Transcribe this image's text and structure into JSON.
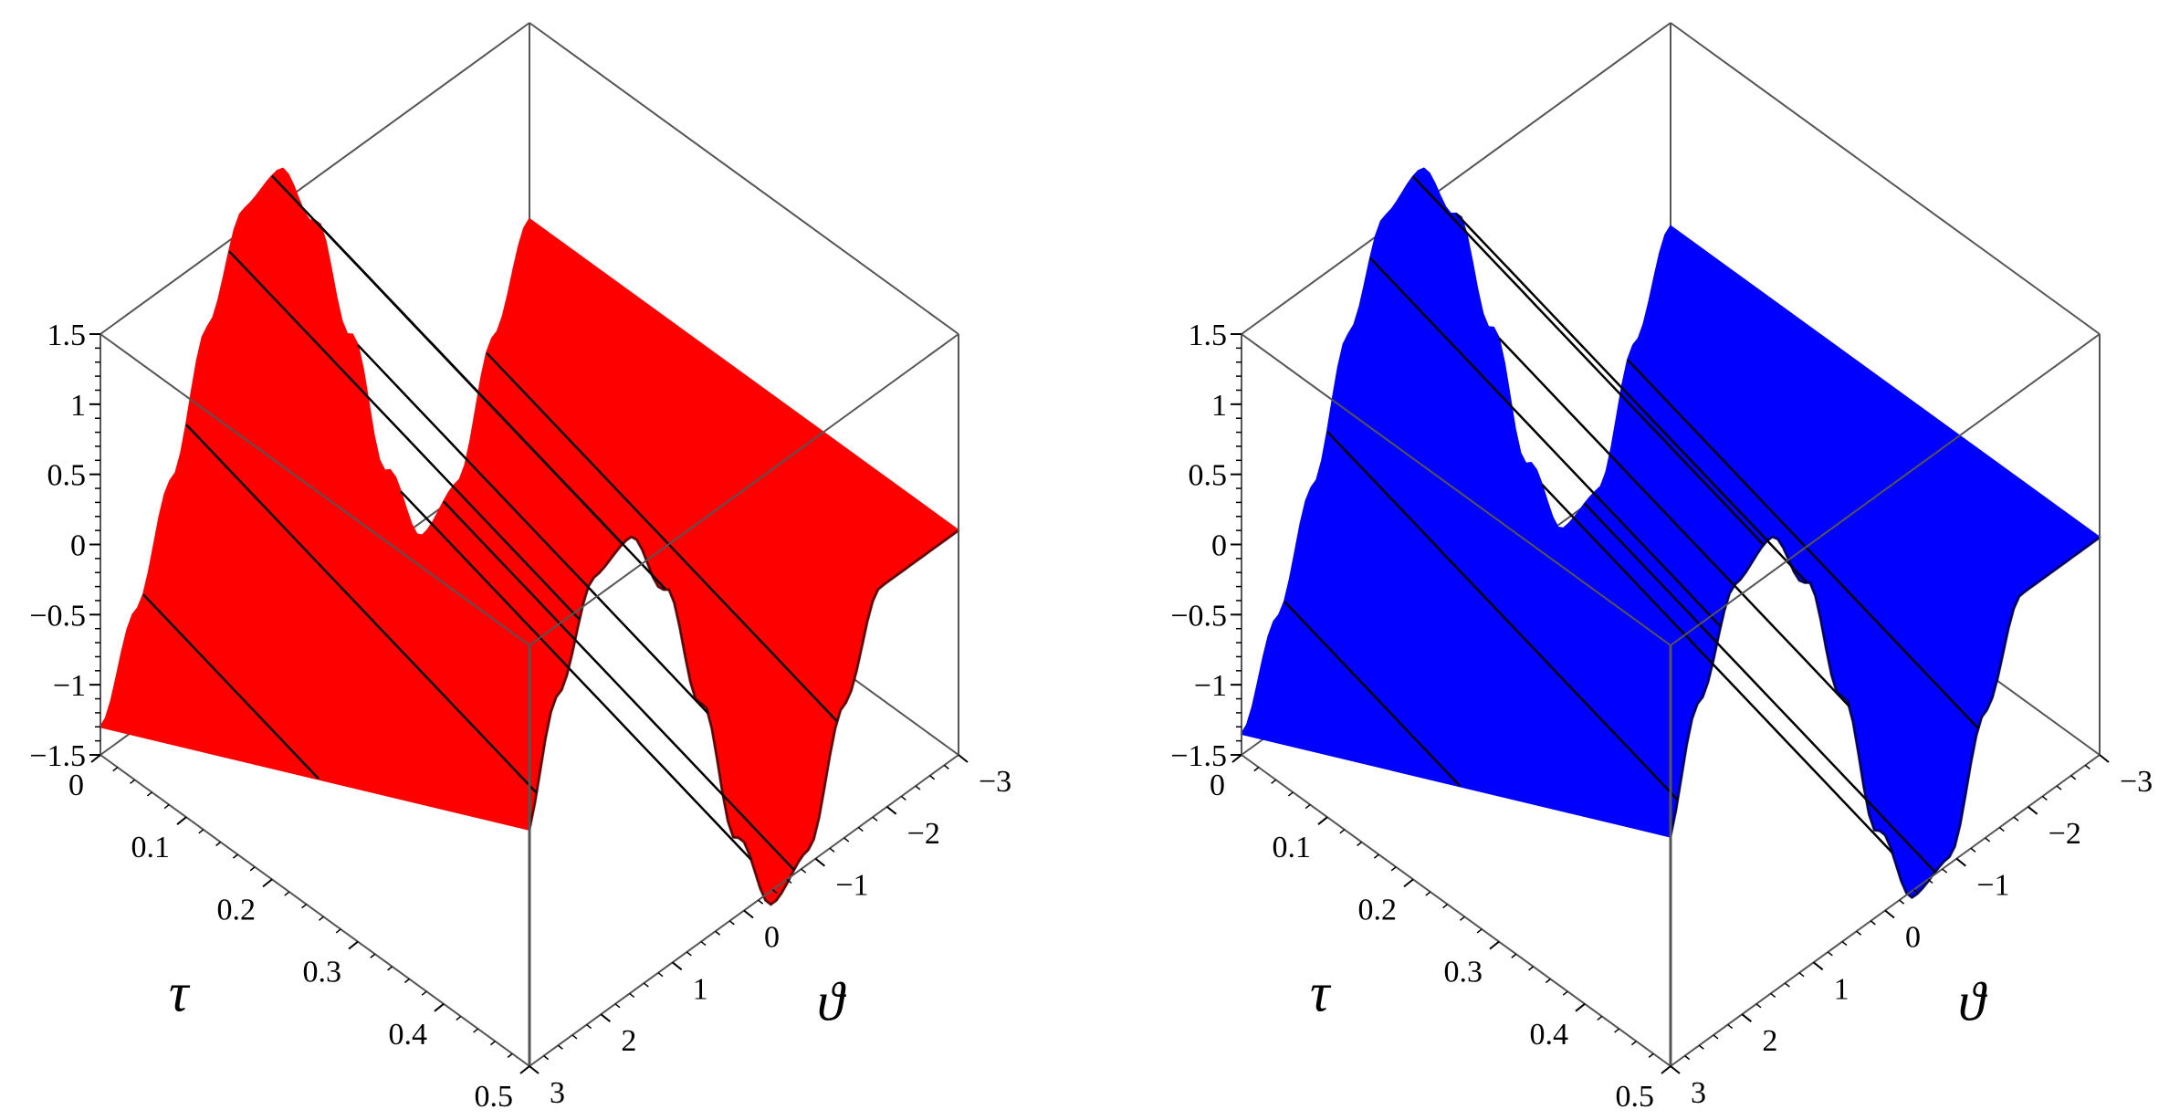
{
  "figure": {
    "panels": 2
  },
  "chart_data": [
    {
      "type": "surface3d",
      "panel": "left",
      "surface_color": "#ff0000",
      "contour_color": "#000000",
      "box_color": "#555555",
      "x_axis": {
        "label": "τ",
        "range": [
          0,
          0.5
        ],
        "ticks": [
          "0",
          "0.1",
          "0.2",
          "0.3",
          "0.4",
          "0.5"
        ]
      },
      "y_axis": {
        "label": "ϑ",
        "range": [
          -3,
          3
        ],
        "ticks": [
          "-3",
          "-2",
          "-1",
          "0",
          "1",
          "2",
          "3"
        ]
      },
      "z_axis": {
        "label": "",
        "range": [
          -1.5,
          1.5
        ],
        "ticks": [
          "-1.5",
          "-1",
          "-0.5",
          "0",
          "0.5",
          "1",
          "1.5"
        ]
      },
      "profile": {
        "theta": [
          -3,
          -2.5,
          -2,
          -1.5,
          -1,
          -0.5,
          0,
          0.5,
          1,
          1.5,
          2,
          2.5,
          3
        ],
        "z_at_tau0": [
          0.1,
          -0.55,
          -1.4,
          -1.6,
          -0.95,
          0.2,
          1.2,
          1.75,
          1.65,
          1.0,
          0.1,
          -0.65,
          -1.3
        ]
      },
      "grid": false
    },
    {
      "type": "surface3d",
      "panel": "right",
      "surface_color": "#0000ff",
      "contour_color": "#000000",
      "box_color": "#555555",
      "x_axis": {
        "label": "τ",
        "range": [
          0,
          0.5
        ],
        "ticks": [
          "0",
          "0.1",
          "0.2",
          "0.3",
          "0.4",
          "0.5"
        ]
      },
      "y_axis": {
        "label": "ϑ",
        "range": [
          -3,
          3
        ],
        "ticks": [
          "-3",
          "-2",
          "-1",
          "0",
          "1",
          "2",
          "3"
        ]
      },
      "z_axis": {
        "label": "",
        "range": [
          -1.5,
          1.5
        ],
        "ticks": [
          "-1.5",
          "-1",
          "-0.5",
          "0",
          "0.5",
          "1",
          "1.5"
        ]
      },
      "profile": {
        "theta": [
          -3,
          -2.5,
          -2,
          -1.5,
          -1,
          -0.5,
          0,
          0.5,
          1,
          1.5,
          2,
          2.5,
          3
        ],
        "z_at_tau0": [
          0.05,
          -0.6,
          -1.45,
          -1.55,
          -0.9,
          0.25,
          1.25,
          1.75,
          1.6,
          0.95,
          0.05,
          -0.7,
          -1.35
        ]
      },
      "grid": false
    }
  ]
}
